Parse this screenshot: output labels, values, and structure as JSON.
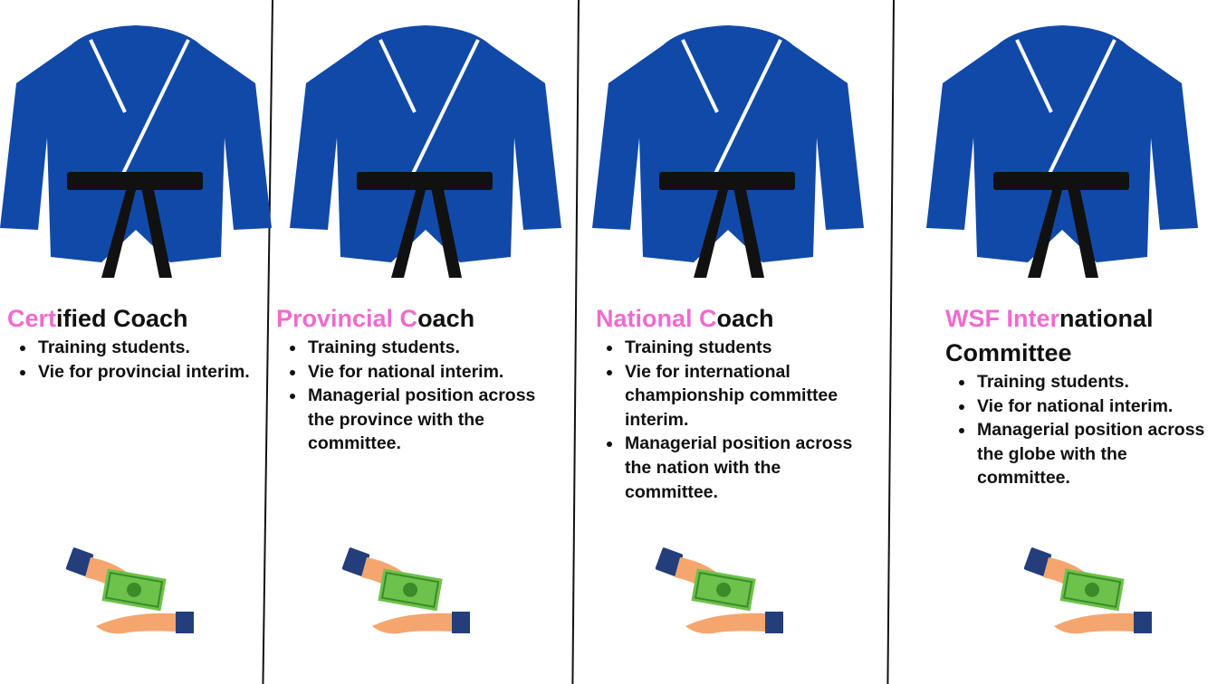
{
  "columns": [
    {
      "title_highlight": "Cert",
      "title_rest": "ified Coach",
      "bullets": [
        "Training students.",
        "Vie for provincial interim."
      ]
    },
    {
      "title_highlight": "Provincial  C",
      "title_rest": "oach",
      "bullets": [
        "Training students.",
        "Vie for national interim.",
        "Managerial position across the province with the committee."
      ]
    },
    {
      "title_highlight": "National  C",
      "title_rest": "oach",
      "bullets": [
        "Training students",
        "Vie for international championship committee interim.",
        "Managerial position across the nation with the committee."
      ]
    },
    {
      "title_highlight": "WSF Inter",
      "title_rest": "national",
      "title_line2": "Committee",
      "bullets": [
        "Training students.",
        "Vie for national interim.",
        "Managerial position across the globe with the committee."
      ]
    }
  ],
  "colors": {
    "highlight": "#f06ad0",
    "gi_blue": "#1149a8",
    "belt": "#111111",
    "cash": "#6cc24a",
    "sleeve": "#233e7a",
    "skin": "#f5a66e"
  },
  "icons": [
    "martial-arts-gi-icon",
    "cash-payment-icon"
  ]
}
